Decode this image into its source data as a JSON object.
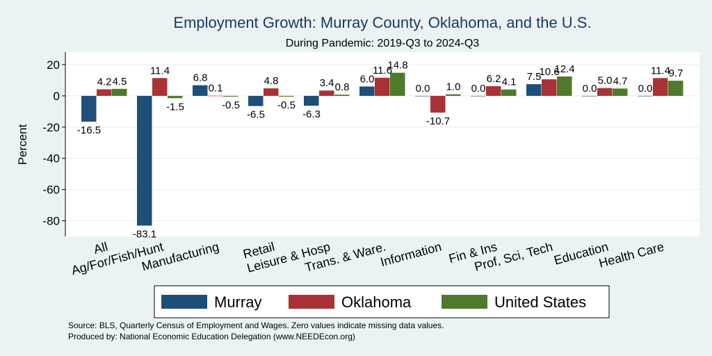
{
  "chart_data": {
    "type": "bar",
    "title": "Employment Growth: Murray County, Oklahoma, and the U.S.",
    "subtitle": "During Pandemic: 2019-Q3 to 2024-Q3",
    "ylabel": "Percent",
    "ylim": [
      -90,
      28
    ],
    "yticks": [
      20,
      0,
      -20,
      -40,
      -60,
      -80
    ],
    "grid": true,
    "categories": [
      "All",
      "Ag/For/Fish/Hunt",
      "Manufacturing",
      "Retail",
      "Leisure & Hosp",
      "Trans. & Ware.",
      "Information",
      "Fin & Ins",
      "Prof, Sci, Tech",
      "Education",
      "Health Care"
    ],
    "series": [
      {
        "name": "Murray",
        "color": "#1f4e79",
        "values": [
          -16.5,
          -83.1,
          6.8,
          -6.5,
          -6.3,
          6.0,
          0.0,
          0.0,
          7.5,
          0.0,
          0.0
        ]
      },
      {
        "name": "Oklahoma",
        "color": "#a83236",
        "values": [
          4.2,
          11.4,
          0.1,
          4.8,
          3.4,
          11.6,
          -10.7,
          6.2,
          10.6,
          5.0,
          11.4
        ]
      },
      {
        "name": "United States",
        "color": "#4f7a2b",
        "values": [
          4.5,
          -1.5,
          -0.5,
          -0.5,
          0.8,
          14.8,
          1.0,
          4.1,
          12.4,
          4.7,
          9.7
        ]
      }
    ],
    "value_labels": [
      [
        "-16.5",
        "-83.1",
        "6.8",
        "-6.5",
        "-6.3",
        "6.0",
        "0.0",
        "0.0",
        "7.5",
        "0.0",
        "0.0"
      ],
      [
        "4.2",
        "11.4",
        "0.1",
        "4.8",
        "3.4",
        "11.6",
        "-10.7",
        "6.2",
        "10.6",
        "5.0",
        "11.4"
      ],
      [
        "4.5",
        "-1.5",
        "-0.5",
        "-0.5",
        "0.8",
        "14.8",
        "1.0",
        "4.1",
        "12.4",
        "4.7",
        "9.7"
      ]
    ],
    "legend_position": "bottom"
  },
  "footnotes": {
    "source": "Source: BLS, Quarterly Census of Employment and Wages. Zero values indicate missing data values.",
    "produced": "Produced by: National Economic Education Delegation (www.NEEDEcon.org)"
  },
  "colors": {
    "background": "#eaf2f3",
    "plot_background": "#ffffff",
    "grid": "#e6ecee",
    "title": "#1a3a5c"
  }
}
